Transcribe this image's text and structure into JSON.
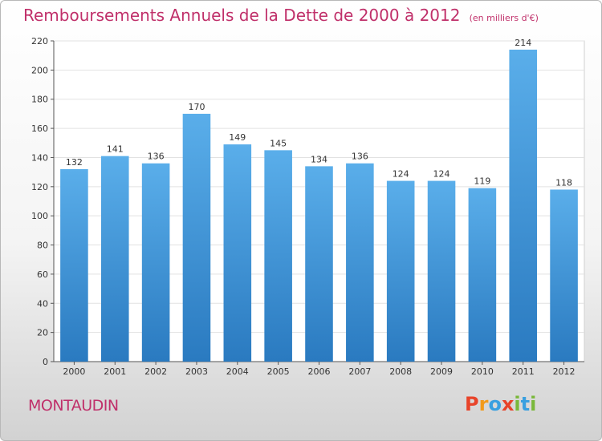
{
  "title": "Remboursements Annuels de la Dette de 2000 à 2012",
  "unit_note": "(en milliers d'€)",
  "place": "MONTAUDIN",
  "logo_text": "Proxiti",
  "colors": {
    "title": "#c0306a",
    "bar_top": "#5aaeea",
    "bar_bottom": "#2a7ac0",
    "logo": [
      "#e8442a",
      "#f29a1a",
      "#3aa0e0",
      "#e8442a",
      "#7ab83a",
      "#3aa0e0",
      "#7ab83a"
    ]
  },
  "chart_data": {
    "type": "bar",
    "categories": [
      "2000",
      "2001",
      "2002",
      "2003",
      "2004",
      "2005",
      "2006",
      "2007",
      "2008",
      "2009",
      "2010",
      "2011",
      "2012"
    ],
    "values": [
      132,
      141,
      136,
      170,
      149,
      145,
      134,
      136,
      124,
      124,
      119,
      214,
      118
    ],
    "ylim": [
      0,
      220
    ],
    "yticks": [
      0,
      20,
      40,
      60,
      80,
      100,
      120,
      140,
      160,
      180,
      200,
      220
    ],
    "grid": true,
    "xlabel": "",
    "ylabel": ""
  }
}
